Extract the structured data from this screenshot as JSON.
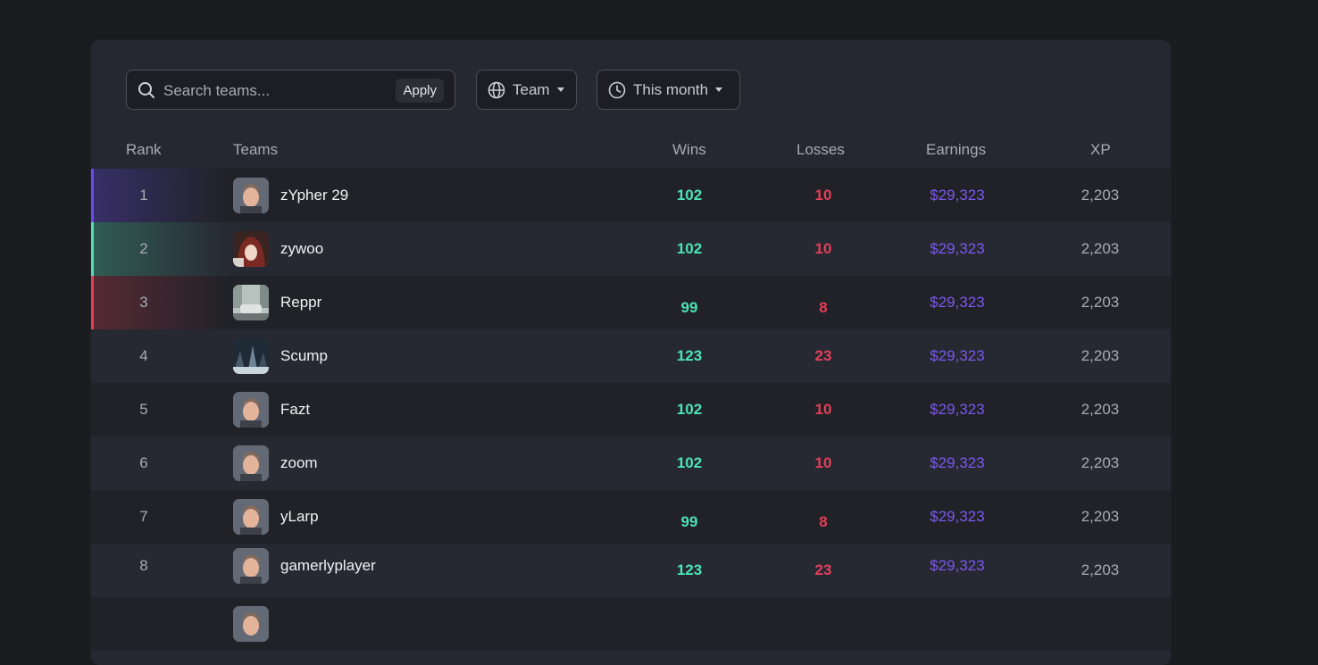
{
  "search": {
    "placeholder": "Search teams...",
    "apply_label": "Apply"
  },
  "filters": {
    "team_label": "Team",
    "time_label": "This month"
  },
  "columns": {
    "rank": "Rank",
    "teams": "Teams",
    "wins": "Wins",
    "losses": "Losses",
    "earnings": "Earnings",
    "xp": "XP"
  },
  "colors": {
    "wins": "#4ee2b4",
    "losses": "#e53e58",
    "earnings": "#7d57f0",
    "rank1": "#6a4bf0",
    "rank2": "#4ee2b4",
    "rank3": "#e53e58"
  },
  "rows": [
    {
      "rank": "1",
      "name": "zYpher 29",
      "wins": "102",
      "losses": "10",
      "earnings": "$29,323",
      "xp": "2,203",
      "avatar": "cartoon-man-avatar"
    },
    {
      "rank": "2",
      "name": "zywoo",
      "wins": "102",
      "losses": "10",
      "earnings": "$29,323",
      "xp": "2,203",
      "avatar": "anime-avatar"
    },
    {
      "rank": "3",
      "name": "Reppr",
      "wins": "99",
      "losses": "8",
      "earnings": "$29,323",
      "xp": "2,203",
      "avatar": "street-car-avatar"
    },
    {
      "rank": "4",
      "name": "Scump",
      "wins": "123",
      "losses": "23",
      "earnings": "$29,323",
      "xp": "2,203",
      "avatar": "dark-scene-avatar"
    },
    {
      "rank": "5",
      "name": "Fazt",
      "wins": "102",
      "losses": "10",
      "earnings": "$29,323",
      "xp": "2,203",
      "avatar": "cartoon-man-avatar"
    },
    {
      "rank": "6",
      "name": "zoom",
      "wins": "102",
      "losses": "10",
      "earnings": "$29,323",
      "xp": "2,203",
      "avatar": "cartoon-man-avatar"
    },
    {
      "rank": "7",
      "name": "yLarp",
      "wins": "99",
      "losses": "8",
      "earnings": "$29,323",
      "xp": "2,203",
      "avatar": "cartoon-man-avatar"
    },
    {
      "rank": "8",
      "name": "gamerlyplayer",
      "wins": "123",
      "losses": "23",
      "earnings": "$29,323",
      "xp": "2,203",
      "avatar": "cartoon-man-avatar"
    }
  ]
}
